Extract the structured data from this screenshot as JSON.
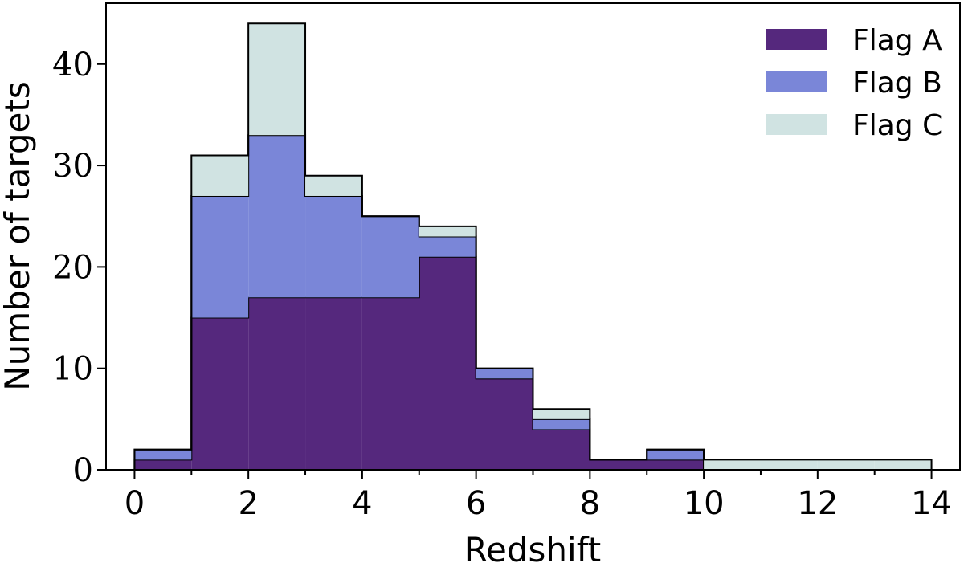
{
  "chart_data": {
    "type": "bar",
    "subtype": "stacked-step-histogram",
    "title": "",
    "xlabel": "Redshift",
    "ylabel": "Number of targets",
    "xlim": [
      -0.5,
      14.5
    ],
    "ylim": [
      0,
      46
    ],
    "x_ticks": [
      0,
      2,
      4,
      6,
      8,
      10,
      12,
      14
    ],
    "x_minor_ticks": [
      1,
      3,
      5,
      7,
      9,
      11,
      13
    ],
    "y_ticks": [
      0,
      10,
      20,
      30,
      40
    ],
    "bin_edges": [
      0,
      1,
      2,
      3,
      4,
      5,
      6,
      7,
      8,
      9,
      10,
      11,
      12,
      13,
      14
    ],
    "series": [
      {
        "name": "Flag A",
        "color": "#55287d",
        "values": [
          1,
          15,
          17,
          17,
          17,
          21,
          9,
          4,
          1,
          1,
          0,
          0,
          0,
          0
        ]
      },
      {
        "name": "Flag B",
        "color": "#7a86d8",
        "values": [
          1,
          12,
          16,
          10,
          8,
          2,
          1,
          1,
          0,
          1,
          0,
          0,
          0,
          0
        ]
      },
      {
        "name": "Flag C",
        "color": "#d0e3e2",
        "values": [
          0,
          4,
          11,
          2,
          0,
          1,
          0,
          1,
          0,
          0,
          1,
          1,
          1,
          1
        ]
      }
    ],
    "legend_position": "top-right",
    "grid": false
  }
}
